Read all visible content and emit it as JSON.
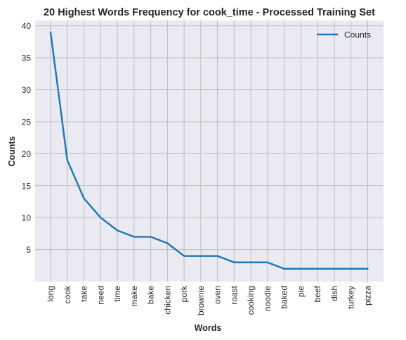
{
  "chart_data": {
    "type": "line",
    "title": "20 Highest Words Frequency for cook_time - Processed Training Set",
    "xlabel": "Words",
    "ylabel": "Counts",
    "categories": [
      "long",
      "cook",
      "take",
      "need",
      "time",
      "make",
      "bake",
      "chicken",
      "pork",
      "brownie",
      "oven",
      "roast",
      "cooking",
      "noodle",
      "baked",
      "pie",
      "beef",
      "dish",
      "turkey",
      "pizza"
    ],
    "series": [
      {
        "name": "Counts",
        "values": [
          39,
          19,
          13,
          10,
          8,
          7,
          7,
          6,
          4,
          4,
          4,
          3,
          3,
          3,
          2,
          2,
          2,
          2,
          2,
          2
        ]
      }
    ],
    "ylim": [
      0,
      40.85
    ],
    "yticks": [
      5,
      10,
      15,
      20,
      25,
      30,
      35,
      40
    ],
    "grid": true,
    "legend_position": "top-right",
    "colors": {
      "line": "#1f77b4",
      "plot_background": "#eaeaf2",
      "grid": "#bdbdbd",
      "text": "#262626"
    }
  }
}
